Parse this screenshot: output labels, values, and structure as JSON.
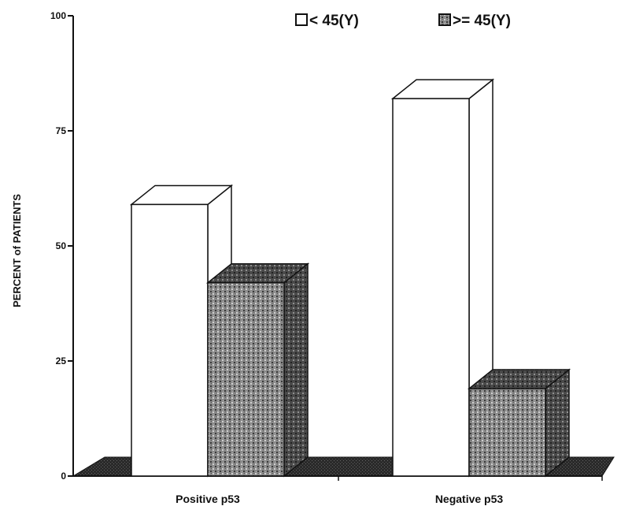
{
  "chart_data": {
    "type": "bar",
    "subtype": "3d-clustered",
    "categories": [
      "Positive p53",
      "Negative p53"
    ],
    "series": [
      {
        "name": "< 45(Y)",
        "values": [
          59,
          82
        ],
        "fill": "#ffffff"
      },
      {
        "name": ">= 45(Y)",
        "values": [
          42,
          19
        ],
        "fill": "#8a8a8a"
      }
    ],
    "ylabel": "PERCENT of PATIENTS",
    "xlabel": "",
    "ylim": [
      0,
      100
    ],
    "yticks": [
      0,
      25,
      50,
      75,
      100
    ],
    "grid": false,
    "legend_position": "top-right"
  },
  "colors": {
    "floor": "#2a2a2a",
    "stroke": "#111111",
    "hatch_light": "#cfcfcf",
    "hatch_dark": "#3a3a3a"
  }
}
